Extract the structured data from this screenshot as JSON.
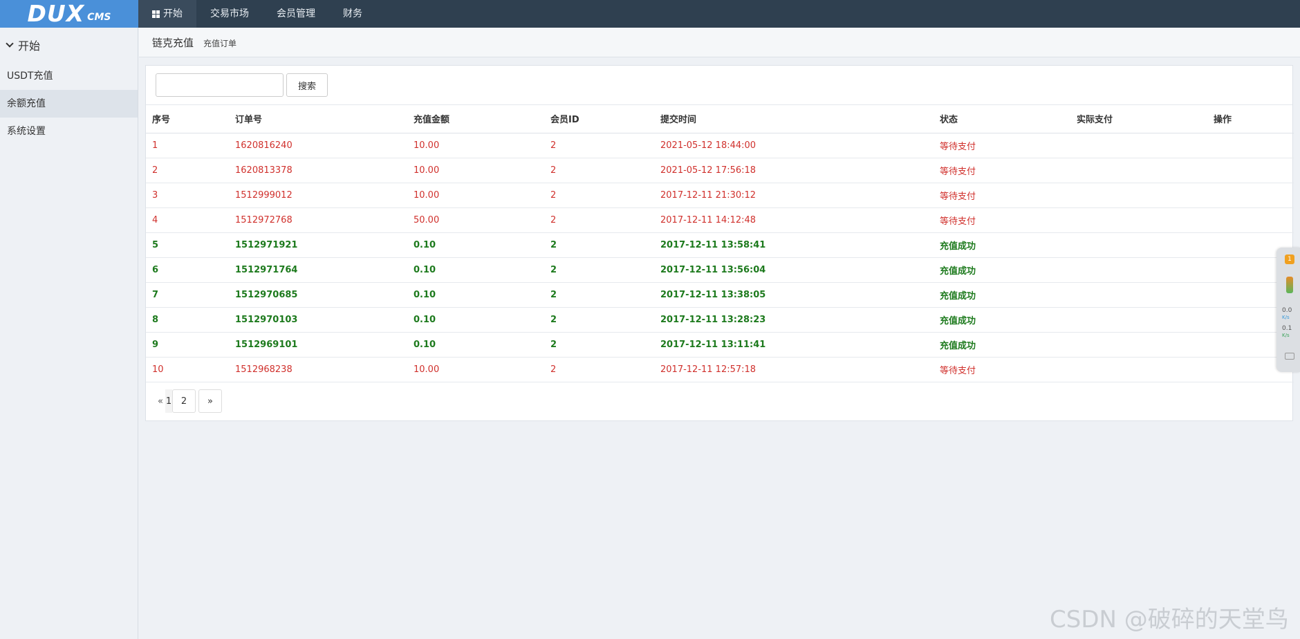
{
  "app": {
    "logo_main": "DUX",
    "logo_sub": "CMS"
  },
  "topnav": [
    {
      "label": "开始",
      "active": true
    },
    {
      "label": "交易市场"
    },
    {
      "label": "会员管理"
    },
    {
      "label": "财务"
    }
  ],
  "sidebar": {
    "heading": "开始",
    "items": [
      {
        "label": "USDT充值"
      },
      {
        "label": "余额充值",
        "active": true
      },
      {
        "label": "系统设置"
      }
    ]
  },
  "breadcrumb": {
    "title": "链克充值",
    "subtitle": "充值订单"
  },
  "search": {
    "value": "",
    "placeholder": "",
    "button_label": "搜索"
  },
  "table": {
    "headers": [
      "序号",
      "订单号",
      "充值金额",
      "会员ID",
      "提交时间",
      "状态",
      "实际支付",
      "操作"
    ],
    "rows": [
      {
        "id": "1",
        "order": "1620816240",
        "amount": "10.00",
        "member": "2",
        "time": "2021-05-12 18:44:00",
        "status": "等待支付",
        "paid": "",
        "action": "",
        "type": "pending"
      },
      {
        "id": "2",
        "order": "1620813378",
        "amount": "10.00",
        "member": "2",
        "time": "2021-05-12 17:56:18",
        "status": "等待支付",
        "paid": "",
        "action": "",
        "type": "pending"
      },
      {
        "id": "3",
        "order": "1512999012",
        "amount": "10.00",
        "member": "2",
        "time": "2017-12-11 21:30:12",
        "status": "等待支付",
        "paid": "",
        "action": "",
        "type": "pending"
      },
      {
        "id": "4",
        "order": "1512972768",
        "amount": "50.00",
        "member": "2",
        "time": "2017-12-11 14:12:48",
        "status": "等待支付",
        "paid": "",
        "action": "",
        "type": "pending"
      },
      {
        "id": "5",
        "order": "1512971921",
        "amount": "0.10",
        "member": "2",
        "time": "2017-12-11 13:58:41",
        "status": "充值成功",
        "paid": "",
        "action": "",
        "type": "success"
      },
      {
        "id": "6",
        "order": "1512971764",
        "amount": "0.10",
        "member": "2",
        "time": "2017-12-11 13:56:04",
        "status": "充值成功",
        "paid": "",
        "action": "",
        "type": "success"
      },
      {
        "id": "7",
        "order": "1512970685",
        "amount": "0.10",
        "member": "2",
        "time": "2017-12-11 13:38:05",
        "status": "充值成功",
        "paid": "",
        "action": "",
        "type": "success"
      },
      {
        "id": "8",
        "order": "1512970103",
        "amount": "0.10",
        "member": "2",
        "time": "2017-12-11 13:28:23",
        "status": "充值成功",
        "paid": "",
        "action": "",
        "type": "success"
      },
      {
        "id": "9",
        "order": "1512969101",
        "amount": "0.10",
        "member": "2",
        "time": "2017-12-11 13:11:41",
        "status": "充值成功",
        "paid": "",
        "action": "",
        "type": "success"
      },
      {
        "id": "10",
        "order": "1512968238",
        "amount": "10.00",
        "member": "2",
        "time": "2017-12-11 12:57:18",
        "status": "等待支付",
        "paid": "",
        "action": "",
        "type": "pending"
      }
    ]
  },
  "pagination": {
    "prev": "«",
    "current": "1",
    "page2": "2",
    "next": "»"
  },
  "widget": {
    "badge": "1",
    "up_speed": "0.0",
    "down_speed": "0.1",
    "unit": "K/s"
  },
  "watermark": "CSDN @破碎的天堂鸟",
  "colors": {
    "topbar": "#2f4050",
    "logo_bg": "#4a90d9",
    "pending": "#d0302c",
    "success": "#1d7a1d"
  }
}
